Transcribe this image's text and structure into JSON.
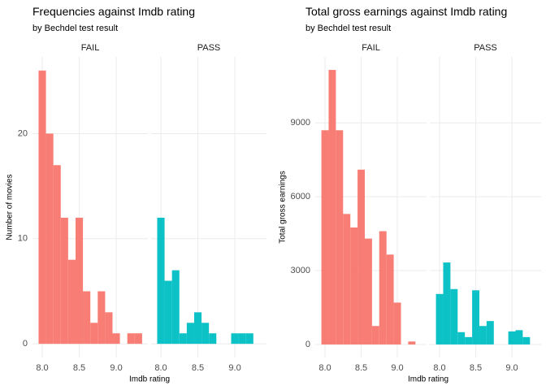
{
  "chart_data": [
    {
      "type": "histogram",
      "title": "Frequencies against Imdb rating",
      "subtitle": "by Bechdel test result",
      "x_label": "Imdb rating",
      "y_label": "Number of movies",
      "xlim": [
        7.868,
        9.428
      ],
      "xticks": [
        {
          "value": 8,
          "label": "8.0"
        },
        8.5,
        {
          "value": 9,
          "label": "9.0"
        }
      ],
      "ylim": [
        -1.3,
        27.3
      ],
      "yticks": [
        0,
        10,
        20
      ],
      "grid": true,
      "facets": [
        {
          "name": "FAIL",
          "color": "#F8766D",
          "bins": [
            7.95,
            8.05,
            8.15,
            8.25,
            8.35,
            8.45,
            8.55,
            8.65,
            8.75,
            8.85,
            8.95,
            9.05,
            9.15,
            9.25,
            9.35
          ],
          "values": [
            26,
            20,
            17,
            12,
            8,
            12,
            5,
            2,
            5,
            3,
            1,
            0,
            1,
            1
          ]
        },
        {
          "name": "PASS",
          "color": "#00BFC4",
          "bins": [
            7.95,
            8.05,
            8.15,
            8.25,
            8.35,
            8.45,
            8.55,
            8.65,
            8.75,
            8.85,
            8.95,
            9.05,
            9.15,
            9.25
          ],
          "values": [
            12,
            6,
            7,
            1,
            2,
            3,
            2,
            1,
            0,
            0,
            1,
            1,
            1
          ]
        }
      ]
    },
    {
      "type": "histogram",
      "title": "Total gross earnings against Imdb rating",
      "subtitle": "by Bechdel test result",
      "x_label": "Imdb rating",
      "y_label": "Total gross earnings",
      "xlim": [
        7.865,
        9.404
      ],
      "xticks": [
        {
          "value": 8,
          "label": "8.0"
        },
        8.5,
        {
          "value": 9,
          "label": "9.0"
        }
      ],
      "ylim": [
        -530,
        11680
      ],
      "yticks": [
        0,
        3000,
        6000,
        9000
      ],
      "grid": true,
      "facets": [
        {
          "name": "FAIL",
          "color": "#F8766D",
          "bins": [
            7.95,
            8.05,
            8.15,
            8.25,
            8.35,
            8.45,
            8.55,
            8.65,
            8.75,
            8.85,
            8.95,
            9.05,
            9.15,
            9.25,
            9.35
          ],
          "values": [
            8700,
            11150,
            8700,
            5300,
            4750,
            7100,
            4300,
            750,
            4600,
            3650,
            1700,
            0,
            120,
            0
          ]
        },
        {
          "name": "PASS",
          "color": "#00BFC4",
          "bins": [
            7.95,
            8.05,
            8.15,
            8.25,
            8.35,
            8.45,
            8.55,
            8.65,
            8.75,
            8.85,
            8.95,
            9.05,
            9.15,
            9.25
          ],
          "values": [
            2050,
            3330,
            2250,
            500,
            300,
            2200,
            750,
            950,
            0,
            0,
            530,
            580,
            300
          ]
        }
      ]
    }
  ]
}
